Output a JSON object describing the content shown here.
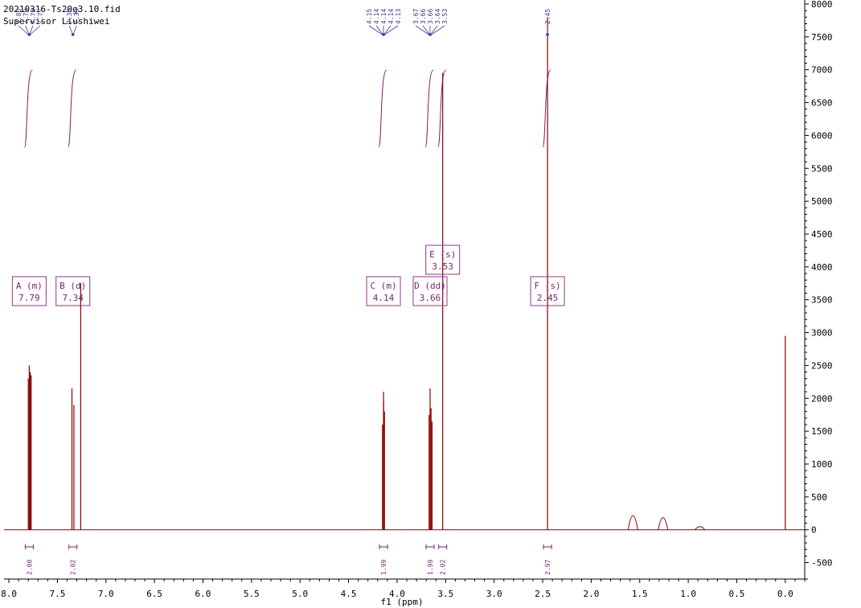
{
  "header": {
    "line1": "20210316-Ts20g3.10.fid",
    "line2": "Supervisor Liushiwei"
  },
  "colors": {
    "spectrum": "#8b0000",
    "integral": "#7a1f6e",
    "peak_labels": "#3a3a9a",
    "multiplet_box": "#8a3a8a"
  },
  "chart_data": {
    "type": "line",
    "xlabel": "f1 (ppm)",
    "ylabel": "",
    "x_reversed": true,
    "xlim": [
      8.05,
      -0.2
    ],
    "ylim": [
      -750,
      8000
    ],
    "x_ticks": [
      "8.0",
      "7.5",
      "7.0",
      "6.5",
      "6.0",
      "5.5",
      "5.0",
      "4.5",
      "4.0",
      "3.5",
      "3.0",
      "2.5",
      "2.0",
      "1.5",
      "1.0",
      "0.5",
      "0.0"
    ],
    "x_tick_values": [
      8.0,
      7.5,
      7.0,
      6.5,
      6.0,
      5.5,
      5.0,
      4.5,
      4.0,
      3.5,
      3.0,
      2.5,
      2.0,
      1.5,
      1.0,
      0.5,
      0.0
    ],
    "y_ticks": [
      "-500",
      "0",
      "500",
      "1000",
      "1500",
      "2000",
      "2500",
      "3000",
      "3500",
      "4000",
      "4500",
      "5000",
      "5500",
      "6000",
      "6500",
      "7000",
      "7500",
      "8000"
    ],
    "y_tick_values": [
      -500,
      0,
      500,
      1000,
      1500,
      2000,
      2500,
      3000,
      3500,
      4000,
      4500,
      5000,
      5500,
      6000,
      6500,
      7000,
      7500,
      8000
    ],
    "peaks": [
      {
        "ppm": 7.8,
        "height": 2300
      },
      {
        "ppm": 7.79,
        "height": 2500
      },
      {
        "ppm": 7.78,
        "height": 2400
      },
      {
        "ppm": 7.77,
        "height": 2350
      },
      {
        "ppm": 7.35,
        "height": 2150
      },
      {
        "ppm": 7.33,
        "height": 1900
      },
      {
        "ppm": 7.26,
        "height": 3750
      },
      {
        "ppm": 4.15,
        "height": 1600
      },
      {
        "ppm": 4.14,
        "height": 2100
      },
      {
        "ppm": 4.14,
        "height": 1950
      },
      {
        "ppm": 4.13,
        "height": 1800
      },
      {
        "ppm": 3.67,
        "height": 1750
      },
      {
        "ppm": 3.66,
        "height": 2150
      },
      {
        "ppm": 3.65,
        "height": 1850
      },
      {
        "ppm": 3.64,
        "height": 1650
      },
      {
        "ppm": 3.53,
        "height": 6950
      },
      {
        "ppm": 2.45,
        "height": 7800
      },
      {
        "ppm": 1.57,
        "height": 270
      },
      {
        "ppm": 1.26,
        "height": 230
      },
      {
        "ppm": 0.88,
        "height": 60
      },
      {
        "ppm": 0.0,
        "height": 2950
      }
    ],
    "peak_labels": [
      {
        "group": "A",
        "ppm": 7.79,
        "labels": [
          "7.80",
          "7.79",
          "7.78",
          "7.77"
        ]
      },
      {
        "group": "B",
        "ppm": 7.34,
        "labels": [
          "7.35",
          "7.33"
        ]
      },
      {
        "group": "C",
        "ppm": 4.14,
        "labels": [
          "4.15",
          "4.14",
          "4.14",
          "4.14",
          "4.13"
        ]
      },
      {
        "group": "D",
        "ppm": 3.66,
        "labels": [
          "3.67",
          "3.66",
          "3.66",
          "3.64",
          "3.53"
        ]
      },
      {
        "group": "F",
        "ppm": 2.45,
        "labels": [
          "2.45"
        ]
      }
    ],
    "integrals": [
      {
        "ppm": 7.79,
        "value": "2.00"
      },
      {
        "ppm": 7.34,
        "value": "2.02"
      },
      {
        "ppm": 4.14,
        "value": "1.99"
      },
      {
        "ppm": 3.66,
        "value": "1.99"
      },
      {
        "ppm": 3.53,
        "value": "2.02"
      },
      {
        "ppm": 2.45,
        "value": "2.97"
      }
    ],
    "multiplets": [
      {
        "label": "A (m)",
        "shift": "7.79",
        "ppm": 7.79
      },
      {
        "label": "B (d)",
        "shift": "7.34",
        "ppm": 7.34
      },
      {
        "label": "C (m)",
        "shift": "4.14",
        "ppm": 4.14
      },
      {
        "label": "D (dd)",
        "shift": "3.66",
        "ppm": 3.66
      },
      {
        "label": "E (s)",
        "shift": "3.53",
        "ppm": 3.53
      },
      {
        "label": "F (s)",
        "shift": "2.45",
        "ppm": 2.45
      }
    ]
  }
}
